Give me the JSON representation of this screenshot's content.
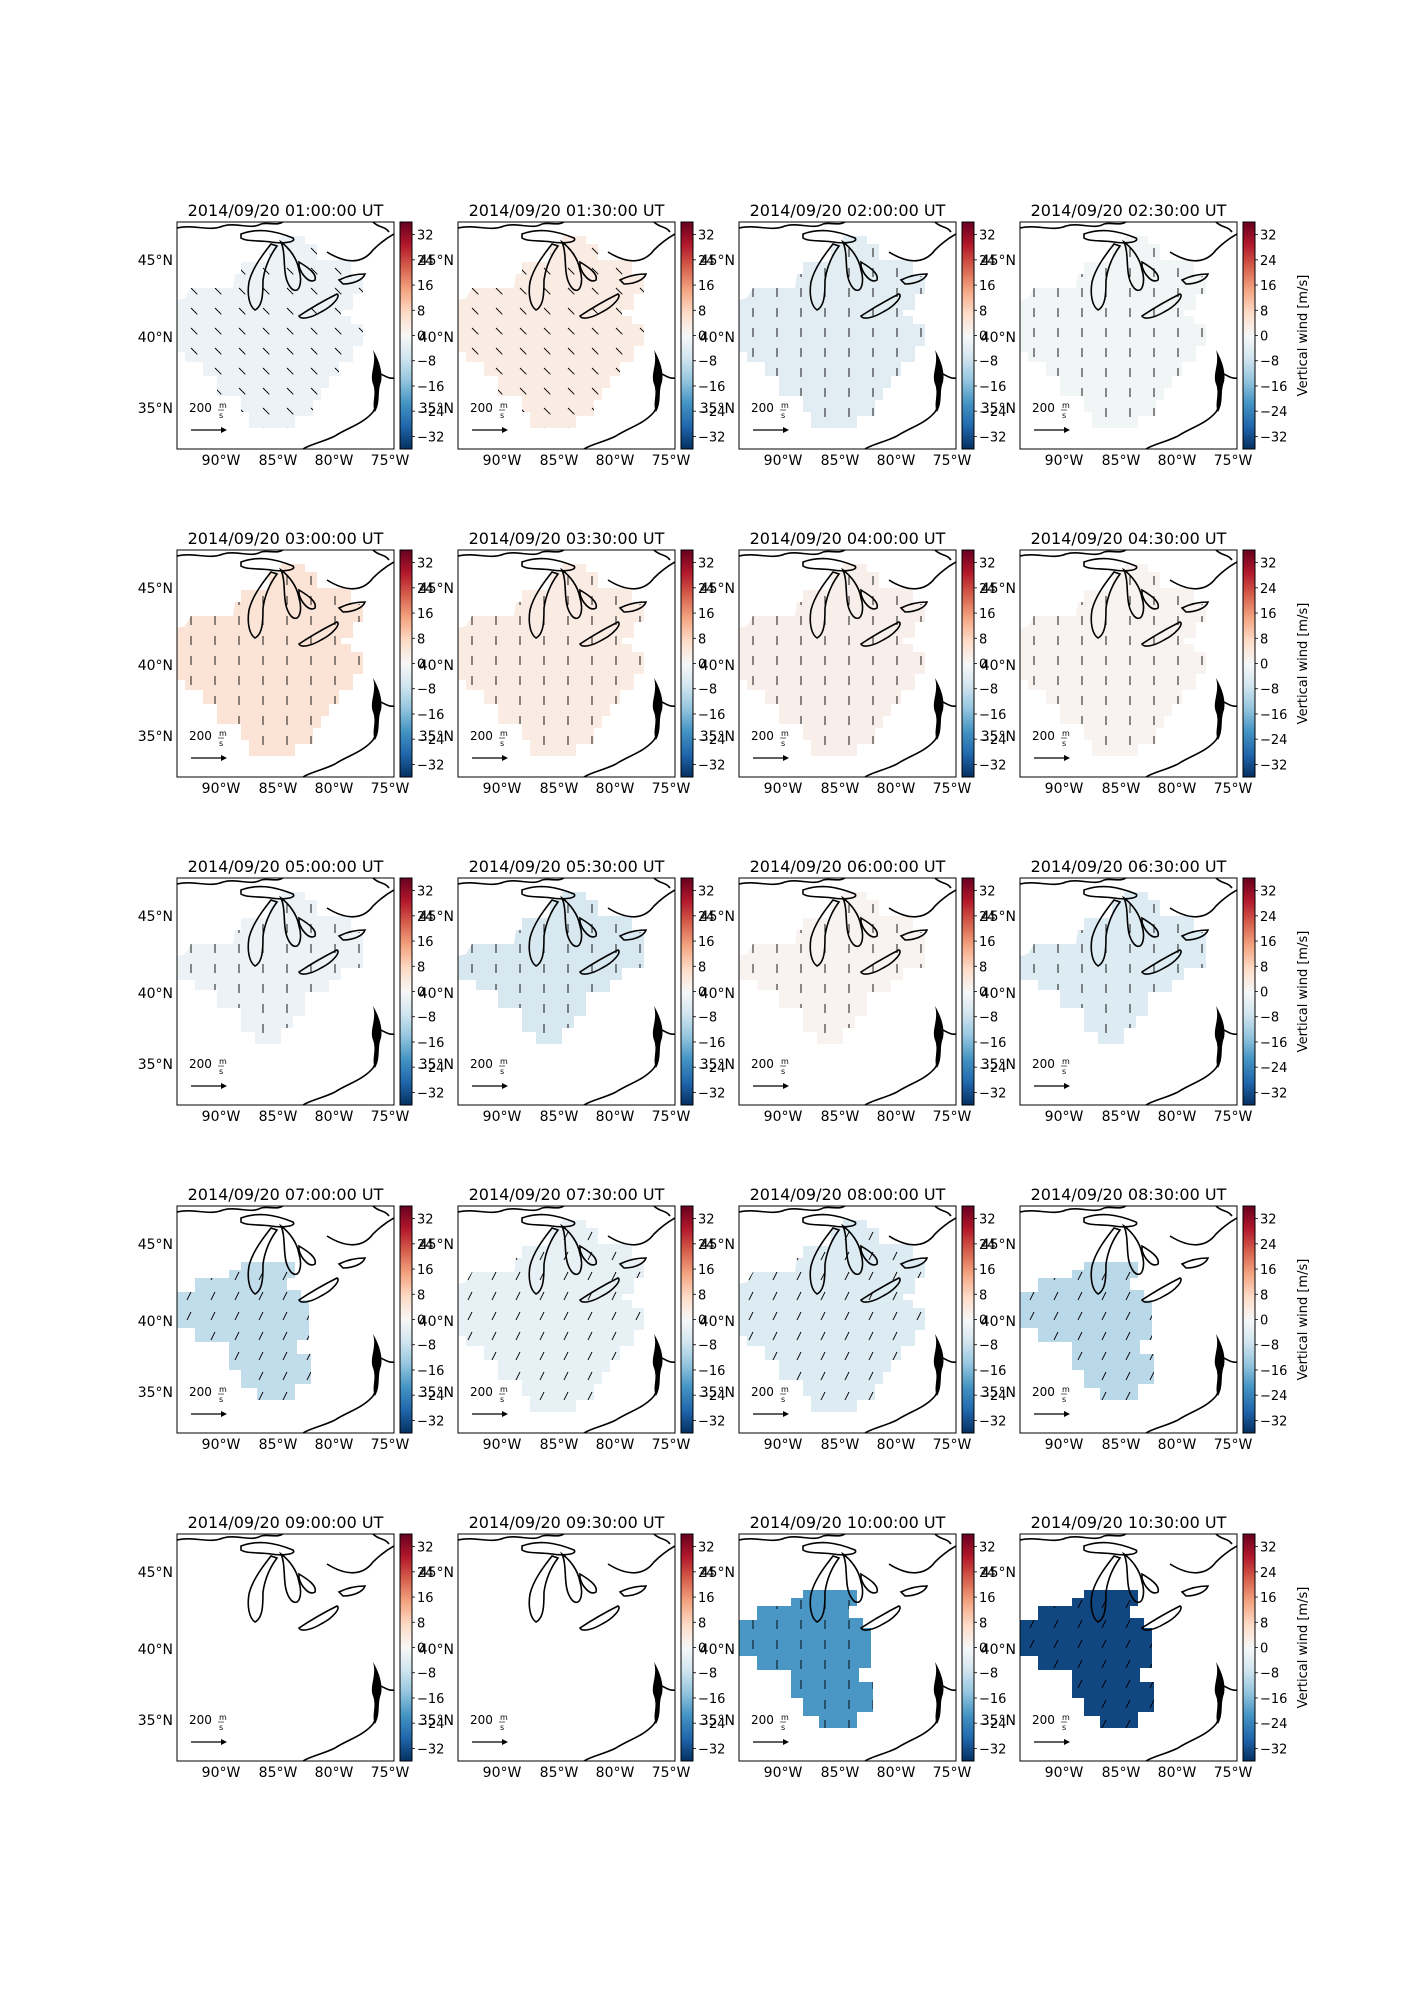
{
  "figure": {
    "panels": [
      {
        "title": "2014/09/20 01:00:00 UT",
        "vertical_wind": -2,
        "arrows": "southeast"
      },
      {
        "title": "2014/09/20 01:30:00 UT",
        "vertical_wind": 3,
        "arrows": "southeast"
      },
      {
        "title": "2014/09/20 02:00:00 UT",
        "vertical_wind": -4,
        "arrows": "south"
      },
      {
        "title": "2014/09/20 02:30:00 UT",
        "vertical_wind": -1,
        "arrows": "south"
      },
      {
        "title": "2014/09/20 03:00:00 UT",
        "vertical_wind": 5,
        "arrows": "south"
      },
      {
        "title": "2014/09/20 03:30:00 UT",
        "vertical_wind": 3,
        "arrows": "south"
      },
      {
        "title": "2014/09/20 04:00:00 UT",
        "vertical_wind": 2,
        "arrows": "south"
      },
      {
        "title": "2014/09/20 04:30:00 UT",
        "vertical_wind": 1,
        "arrows": "south"
      },
      {
        "title": "2014/09/20 05:00:00 UT",
        "vertical_wind": -2,
        "arrows": "south"
      },
      {
        "title": "2014/09/20 05:30:00 UT",
        "vertical_wind": -6,
        "arrows": "south"
      },
      {
        "title": "2014/09/20 06:00:00 UT",
        "vertical_wind": 1,
        "arrows": "south"
      },
      {
        "title": "2014/09/20 06:30:00 UT",
        "vertical_wind": -5,
        "arrows": "south"
      },
      {
        "title": "2014/09/20 07:00:00 UT",
        "vertical_wind": -9,
        "arrows": "southwest"
      },
      {
        "title": "2014/09/20 07:30:00 UT",
        "vertical_wind": -3,
        "arrows": "southwest"
      },
      {
        "title": "2014/09/20 08:00:00 UT",
        "vertical_wind": -5,
        "arrows": "southwest"
      },
      {
        "title": "2014/09/20 08:30:00 UT",
        "vertical_wind": -10,
        "arrows": "southwest"
      },
      {
        "title": "2014/09/20 09:00:00 UT",
        "vertical_wind": 0,
        "arrows": "none"
      },
      {
        "title": "2014/09/20 09:30:00 UT",
        "vertical_wind": 0,
        "arrows": "none"
      },
      {
        "title": "2014/09/20 10:00:00 UT",
        "vertical_wind": -21,
        "arrows": "south"
      },
      {
        "title": "2014/09/20 10:30:00 UT",
        "vertical_wind": -33,
        "arrows": "southwest"
      }
    ],
    "lat_labels": [
      "45°N",
      "40°N",
      "35°N"
    ],
    "lon_labels": [
      "90°W",
      "85°W",
      "80°W",
      "75°W"
    ],
    "colorbar_ticks_a": [
      "32",
      "24",
      "16",
      "8",
      "0",
      "−8",
      "−16",
      "−24",
      "−32"
    ],
    "colorbar_ticks_b": [
      "32",
      "24",
      "16",
      "8",
      "0",
      "−8",
      "−16",
      "−24",
      "−32"
    ],
    "colorbar_label": "Vertical wind [m/s]",
    "colorbar_range": [
      -36,
      36
    ],
    "reference_arrow_label": "200",
    "reference_arrow_unit_num": "m",
    "reference_arrow_unit_den": "s",
    "colors": {
      "cmap": [
        "#053061",
        "#2166ac",
        "#4393c3",
        "#92c5de",
        "#d1e5f0",
        "#f7f7f7",
        "#fddbc7",
        "#f4a582",
        "#d6604d",
        "#b2182b",
        "#67001f"
      ],
      "coast": "#000000"
    }
  }
}
